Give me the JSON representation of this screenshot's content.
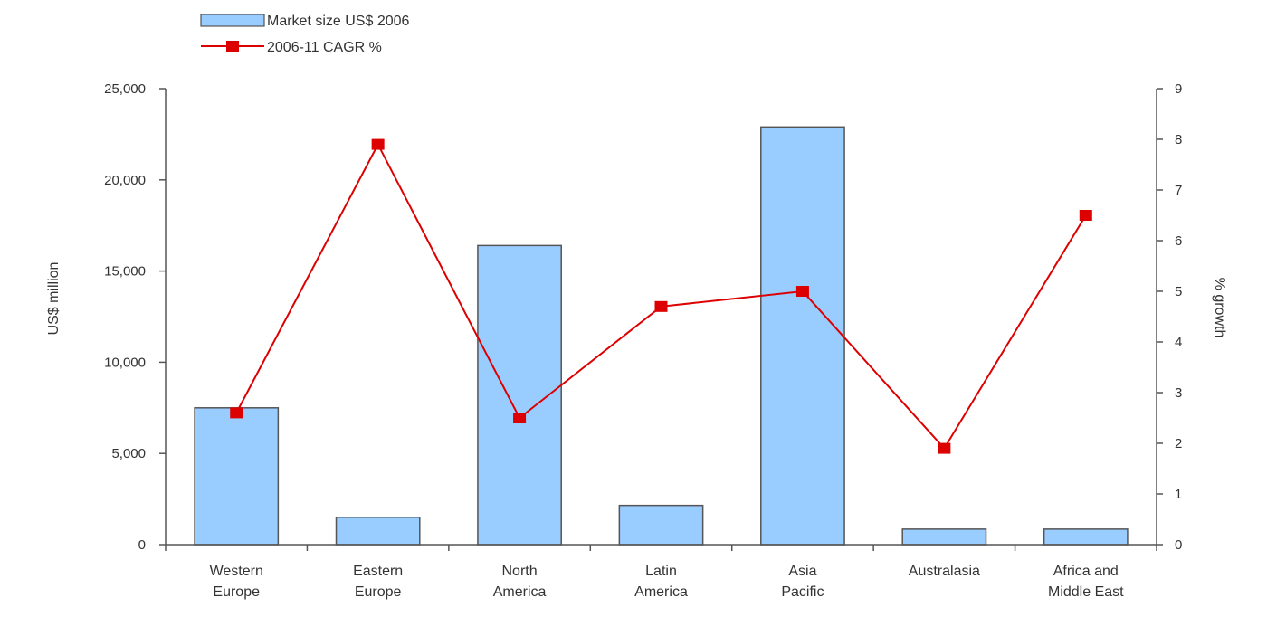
{
  "chart_data": {
    "type": "bar",
    "categories": [
      [
        "Western",
        "Europe"
      ],
      [
        "Eastern",
        "Europe"
      ],
      [
        "North",
        "America"
      ],
      [
        "Latin",
        "America"
      ],
      [
        "Asia",
        "Pacific"
      ],
      [
        "Australasia"
      ],
      [
        "Africa and",
        "Middle East"
      ]
    ],
    "series": [
      {
        "name": "Market size US$ 2006",
        "type": "bar",
        "axis": "left",
        "color": "#99ccff",
        "values": [
          7500,
          1500,
          16400,
          2150,
          22900,
          850,
          850
        ]
      },
      {
        "name": "2006-11 CAGR %",
        "type": "line",
        "axis": "right",
        "color": "#dd0000",
        "values": [
          2.6,
          7.9,
          2.5,
          4.7,
          5.0,
          1.9,
          6.5
        ]
      }
    ],
    "ylabel": "US$ million",
    "y2label": "% growth",
    "ylim": [
      0,
      25000
    ],
    "y2lim": [
      0,
      9
    ],
    "yticks": [
      "0",
      "5,000",
      "10,000",
      "15,000",
      "20,000",
      "25,000"
    ],
    "y2ticks": [
      "0",
      "1",
      "2",
      "3",
      "4",
      "5",
      "6",
      "7",
      "8",
      "9"
    ],
    "grid": false,
    "legend_position": "top-left"
  }
}
